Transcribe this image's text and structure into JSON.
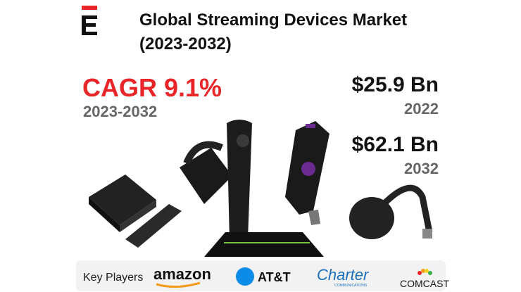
{
  "header": {
    "title": "Global Streaming Devices Market",
    "subtitle": "(2023-2032)"
  },
  "cagr": {
    "label": "CAGR 9.1%",
    "period": "2023-2032"
  },
  "stats": [
    {
      "value": "$25.9 Bn",
      "year": "2022"
    },
    {
      "value": "$62.1 Bn",
      "year": "2032"
    }
  ],
  "key_players": {
    "label": "Key Players",
    "players": [
      "amazon",
      "AT&T",
      "Charter",
      "COMCAST"
    ],
    "charter_tagline": "COMMUNICATIONS"
  }
}
